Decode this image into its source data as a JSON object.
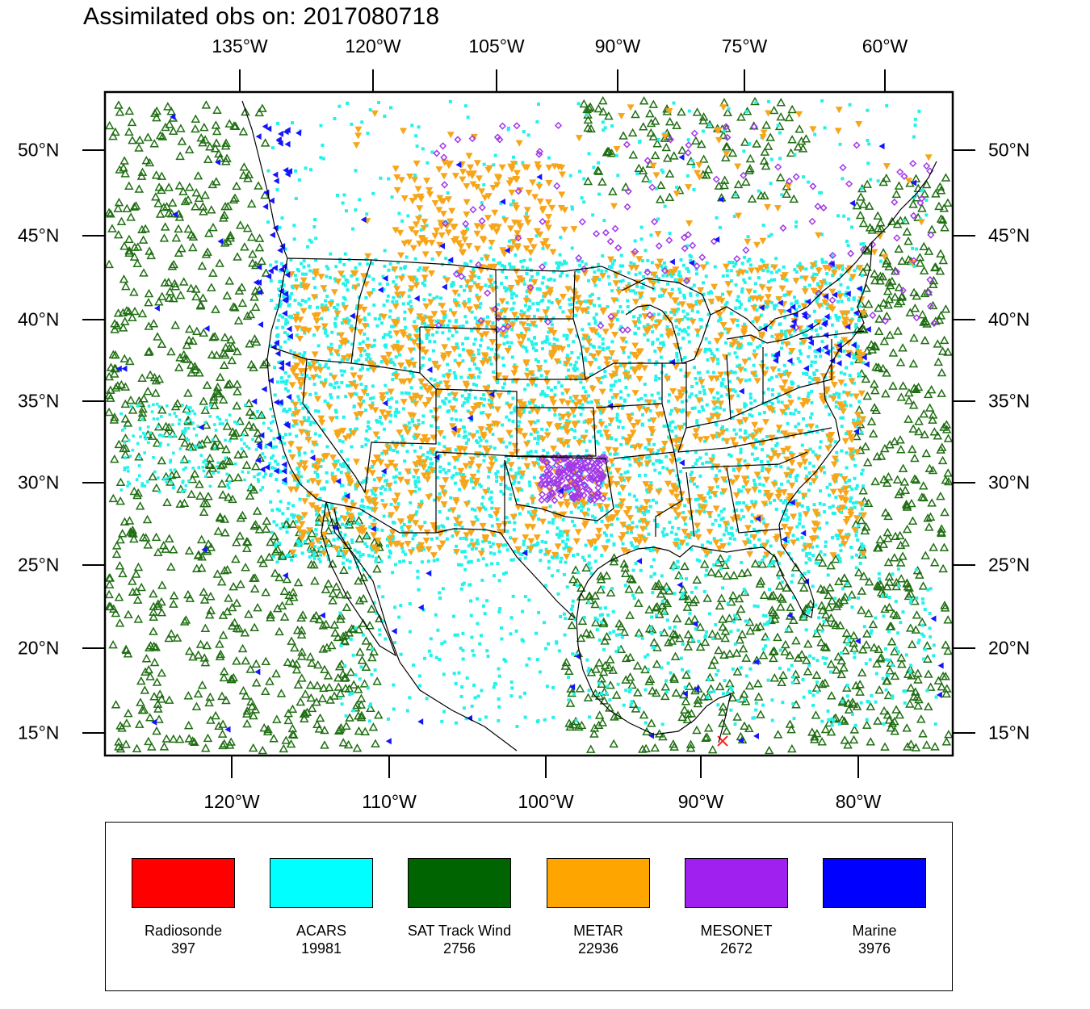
{
  "title": "Assimilated obs on: 2017080718",
  "axes": {
    "top_lon_labels": [
      "135°W",
      "120°W",
      "105°W",
      "90°W",
      "75°W",
      "60°W"
    ],
    "bottom_lon_labels": [
      "120°W",
      "110°W",
      "100°W",
      "90°W",
      "80°W"
    ],
    "lat_labels": [
      "50°N",
      "45°N",
      "40°N",
      "35°N",
      "30°N",
      "25°N",
      "20°N",
      "15°N"
    ]
  },
  "legend": [
    {
      "name": "Radiosonde",
      "count": "397",
      "color": "#ff0000"
    },
    {
      "name": "ACARS",
      "count": "19981",
      "color": "#00ffff"
    },
    {
      "name": "SAT Track Wind",
      "count": "2756",
      "color": "#006400"
    },
    {
      "name": "METAR",
      "count": "22936",
      "color": "#ffa500"
    },
    {
      "name": "MESONET",
      "count": "2672",
      "color": "#a020f0"
    },
    {
      "name": "Marine",
      "count": "3976",
      "color": "#0000ff"
    }
  ],
  "colors": {
    "satwind": "#1f6e12",
    "acars": "#21f2ea",
    "metar": "#f7a519",
    "mesonet": "#a239e8",
    "marine": "#1414ff",
    "radiosonde": "#ff2020",
    "border": "#000000"
  }
}
